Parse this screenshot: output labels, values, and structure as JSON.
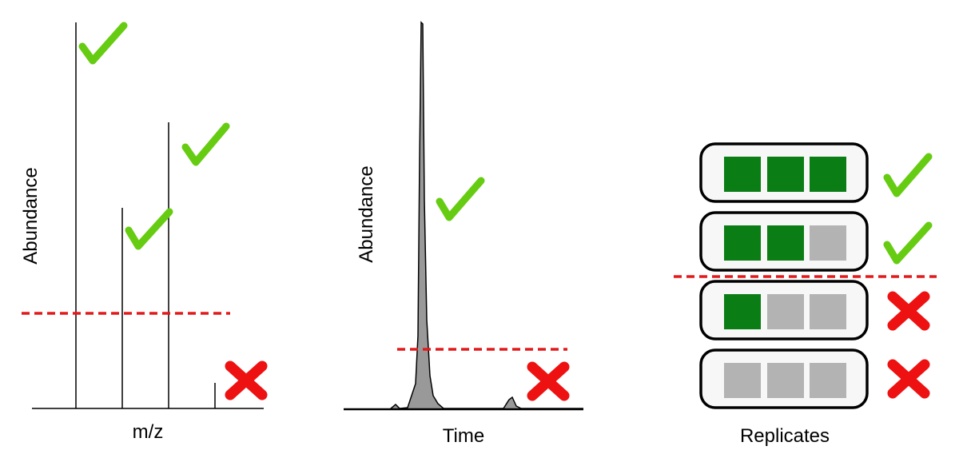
{
  "panels": [
    {
      "y_label": "Abundance",
      "x_label": "m/z"
    },
    {
      "y_label": "Abundance",
      "x_label": "Time"
    },
    {
      "x_label": "Replicates"
    }
  ]
}
